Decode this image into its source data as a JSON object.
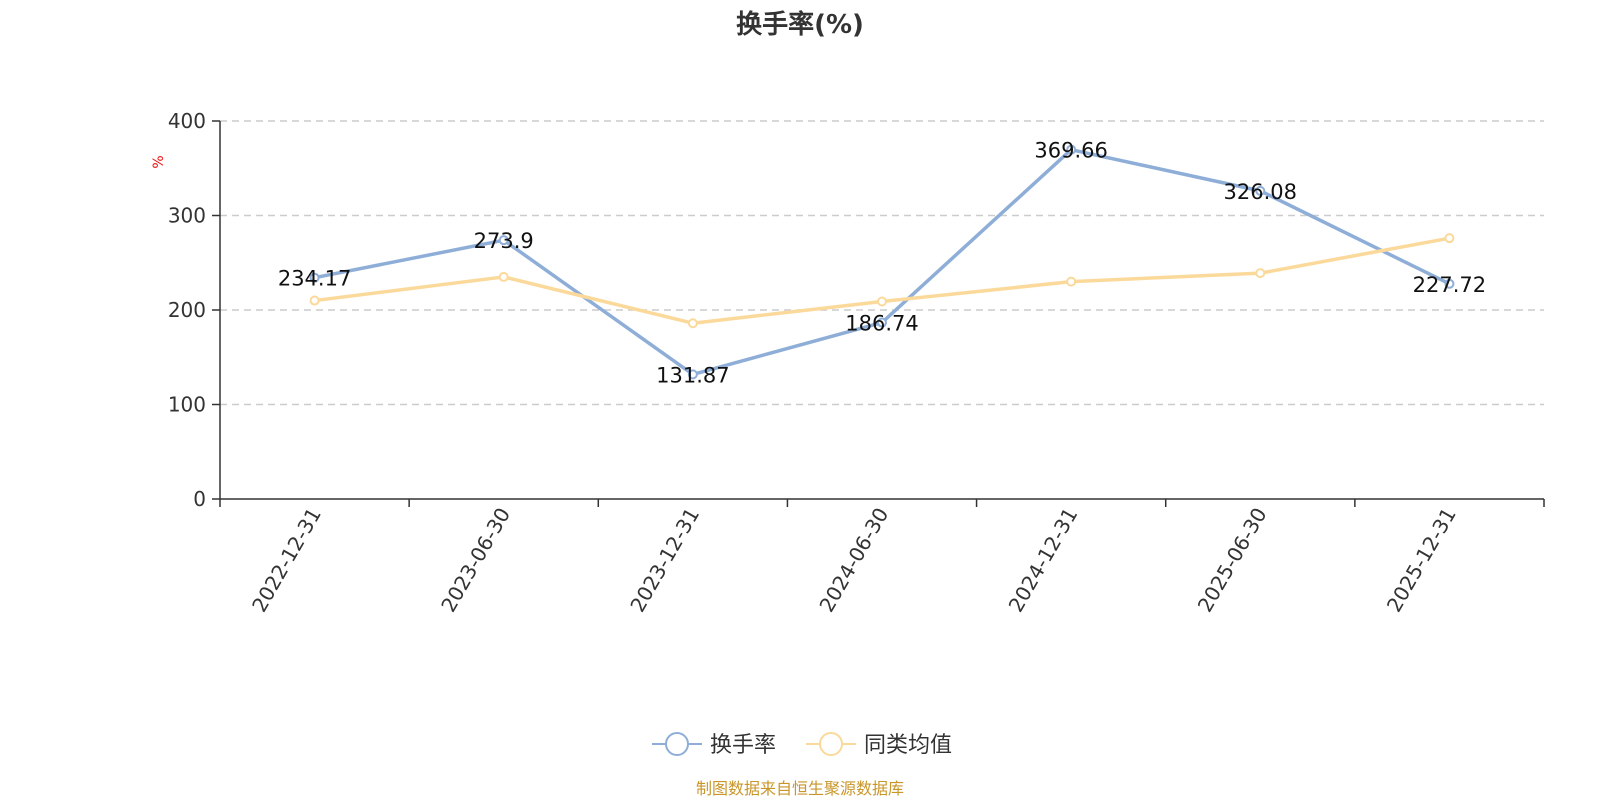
{
  "chart_data": {
    "type": "line",
    "title": "换手率(%)",
    "ylabel": "%",
    "xlabel": "",
    "ylim": [
      0,
      400
    ],
    "yticks": [
      0,
      100,
      200,
      300,
      400
    ],
    "grid": true,
    "categories": [
      "2022-12-31",
      "2023-06-30",
      "2023-12-31",
      "2024-06-30",
      "2024-12-31",
      "2025-06-30",
      "2025-12-31"
    ],
    "series": [
      {
        "name": "换手率",
        "color": "#8eaed8",
        "values": [
          234.17,
          273.9,
          131.87,
          186.74,
          369.66,
          326.08,
          227.72
        ],
        "labels": [
          "234.17",
          "273.9",
          "131.87",
          "186.74",
          "369.66",
          "326.08",
          "227.72"
        ],
        "show_labels": true
      },
      {
        "name": "同类均值",
        "color": "#fbd99a",
        "values": [
          210,
          235,
          186,
          209,
          230,
          239,
          276
        ],
        "show_labels": false
      }
    ],
    "legend_position": "bottom-center",
    "source": "制图数据来自恒生聚源数据库"
  }
}
